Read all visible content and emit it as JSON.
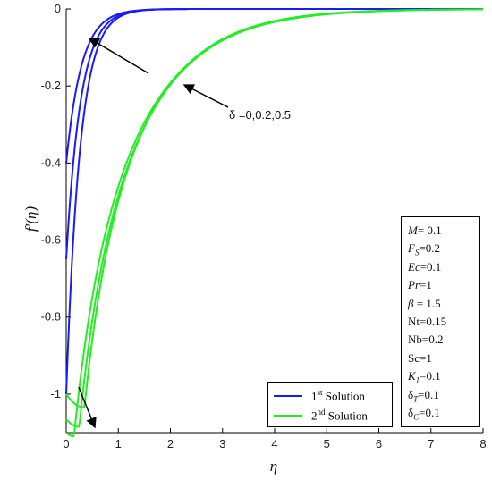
{
  "chart_data": {
    "type": "line",
    "title": "",
    "xlabel": "η",
    "ylabel": "f′(η)",
    "xlim": [
      0,
      8
    ],
    "ylim": [
      -1.1,
      0
    ],
    "x_ticks": [
      "0",
      "1",
      "2",
      "3",
      "4",
      "5",
      "6",
      "7",
      "8"
    ],
    "y_ticks": [
      "0",
      "-0.2",
      "-0.4",
      "-0.6",
      "-0.8",
      "-1"
    ],
    "grid": false,
    "legend_placement": "bottom-right",
    "legend": [
      {
        "sup": "1",
        "sup_text": "st",
        "label": " Solution",
        "color": "#1a1aff"
      },
      {
        "sup": "2",
        "sup_text": "nd",
        "label": " Solution",
        "color": "#22ee22"
      }
    ],
    "series": [
      {
        "group": "1st Solution",
        "color": "#1a1aff",
        "delta": 0,
        "f0": -1.0,
        "decay": 3.8,
        "fmin": -1.0,
        "xmin": 0.0
      },
      {
        "group": "1st Solution",
        "color": "#1a1aff",
        "delta": 0.2,
        "f0": -0.65,
        "decay": 3.6,
        "fmin": -0.65,
        "xmin": 0.0
      },
      {
        "group": "1st Solution",
        "color": "#1a1aff",
        "delta": 0.5,
        "f0": -0.4,
        "decay": 3.4,
        "fmin": -0.4,
        "xmin": 0.0
      },
      {
        "group": "2nd Solution",
        "color": "#22ee22",
        "delta": 0,
        "f0": -1.0,
        "decay": 0.95,
        "fmin": -1.035,
        "xmin": 0.35
      },
      {
        "group": "2nd Solution",
        "color": "#22ee22",
        "delta": 0.2,
        "f0": -1.065,
        "decay": 0.92,
        "fmin": -1.085,
        "xmin": 0.25
      },
      {
        "group": "2nd Solution",
        "color": "#22ee22",
        "delta": 0.5,
        "f0": -1.1,
        "decay": 0.9,
        "fmin": -1.11,
        "xmin": 0.15
      }
    ],
    "annotations": [
      {
        "text": "δ =0,0.2,0.5"
      }
    ],
    "parameters": [
      {
        "sym": "M",
        "sub": "",
        "val": "= 0.1"
      },
      {
        "sym": "F",
        "sub": "S",
        "val": "=0.2"
      },
      {
        "sym": "Ec",
        "sub": "",
        "val": "=0.1"
      },
      {
        "sym": "Pr",
        "sub": "",
        "val": "=1"
      },
      {
        "sym": "β",
        "sub": "",
        "val": " = 1.5"
      },
      {
        "sym": "Nt",
        "sub": "",
        "val": "=0.15",
        "plain": true
      },
      {
        "sym": "Nb",
        "sub": "",
        "val": "=0.2",
        "plain": true
      },
      {
        "sym": "Sc",
        "sub": "",
        "val": "=1",
        "plain": true
      },
      {
        "sym": "K",
        "sub": "1",
        "val": "=0.1"
      },
      {
        "sym": "δ",
        "sub": "T",
        "val": "=0.1",
        "plain": true
      },
      {
        "sym": "δ",
        "sub": "C",
        "val": "=0.1",
        "plain": true
      }
    ]
  }
}
